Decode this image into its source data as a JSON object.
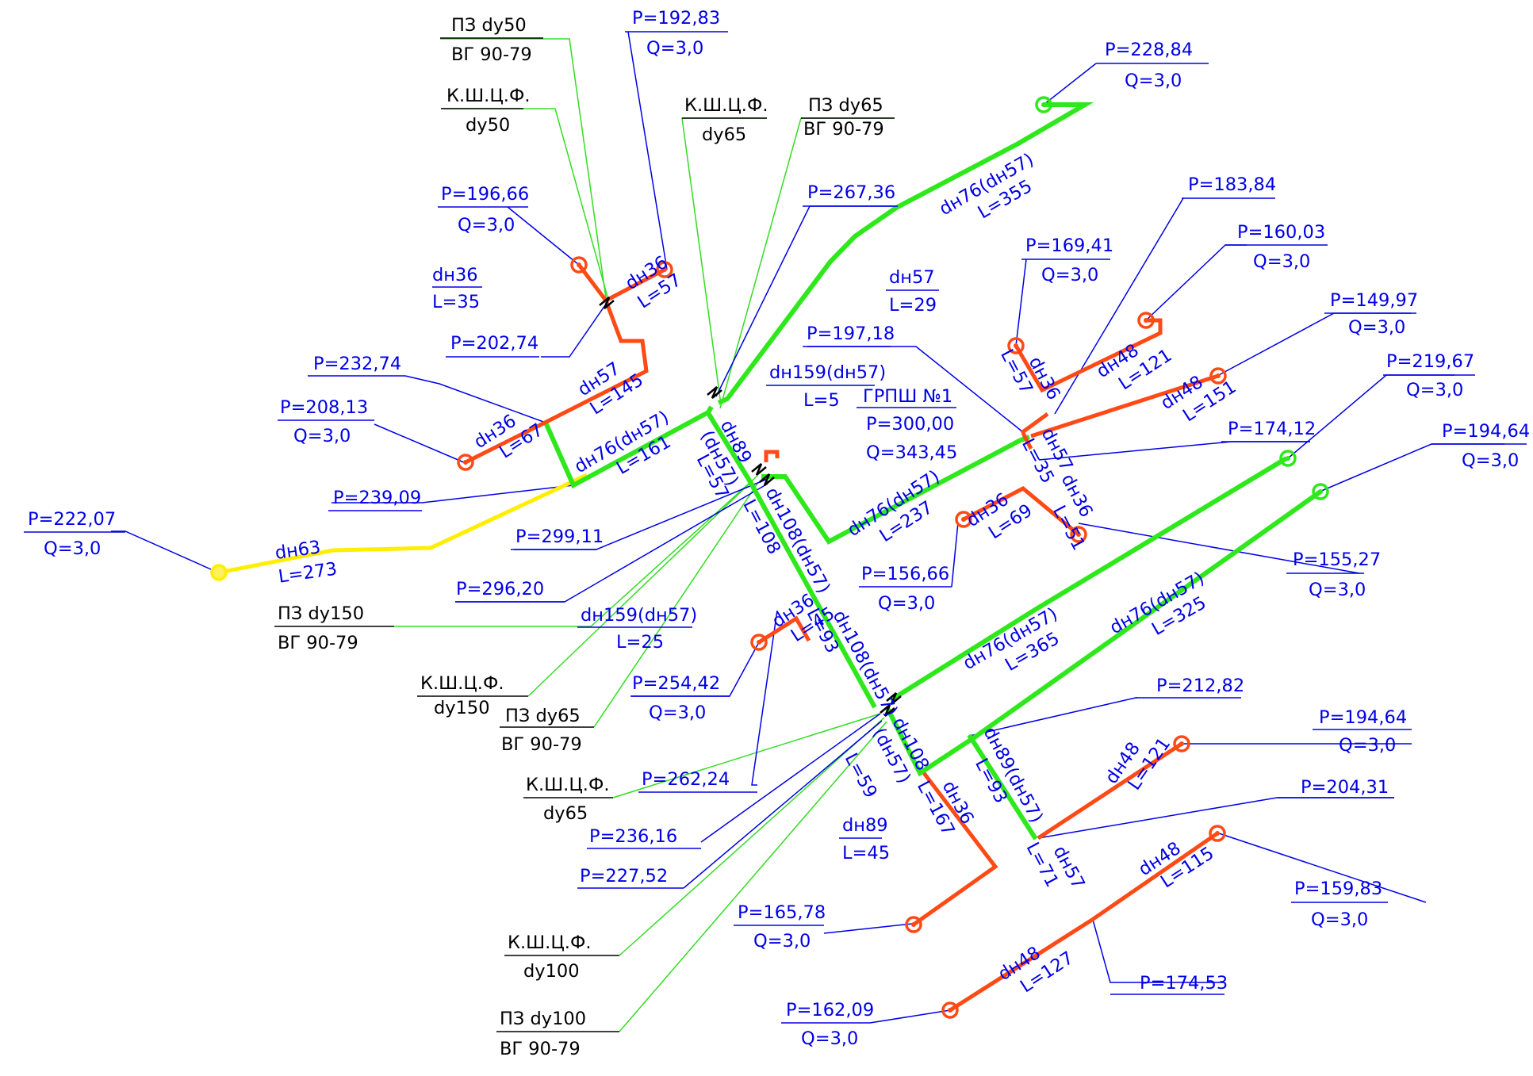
{
  "colors": {
    "pipe_main": "#2ee81c",
    "pipe_branch": "#ff4a16",
    "pipe_feed": "#ffee00",
    "text_data": "#0000e6",
    "text_equipment": "#000000"
  },
  "source": {
    "name": "ГРПШ №1",
    "p": "P=300,00",
    "q": "Q=343,45"
  },
  "pressure_labels": [
    {
      "id": "p1",
      "p": "P=192,83",
      "q": "Q=3,0"
    },
    {
      "id": "p2",
      "p": "P=228,84",
      "q": "Q=3,0"
    },
    {
      "id": "p3",
      "p": "P=196,66",
      "q": "Q=3,0"
    },
    {
      "id": "p4",
      "p": "P=267,36"
    },
    {
      "id": "p5",
      "p": "P=202,74"
    },
    {
      "id": "p6",
      "p": "P=183,84"
    },
    {
      "id": "p7",
      "p": "P=169,41",
      "q": "Q=3,0"
    },
    {
      "id": "p8",
      "p": "P=160,03",
      "q": "Q=3,0"
    },
    {
      "id": "p9",
      "p": "P=149,97",
      "q": "Q=3,0"
    },
    {
      "id": "p10",
      "p": "P=197,18"
    },
    {
      "id": "p11",
      "p": "P=232,74"
    },
    {
      "id": "p12",
      "p": "P=208,13",
      "q": "Q=3,0"
    },
    {
      "id": "p13",
      "p": "P=219,67",
      "q": "Q=3,0"
    },
    {
      "id": "p14",
      "p": "P=174,12"
    },
    {
      "id": "p15",
      "p": "P=194,64",
      "q": "Q=3,0"
    },
    {
      "id": "p16",
      "p": "P=239,09"
    },
    {
      "id": "p17",
      "p": "P=222,07",
      "q": "Q=3,0"
    },
    {
      "id": "p18",
      "p": "P=299,11"
    },
    {
      "id": "p19",
      "p": "P=156,66",
      "q": "Q=3,0"
    },
    {
      "id": "p20",
      "p": "P=155,27",
      "q": "Q=3,0"
    },
    {
      "id": "p21",
      "p": "P=296,20"
    },
    {
      "id": "p22",
      "p": "P=254,42",
      "q": "Q=3,0"
    },
    {
      "id": "p23",
      "p": "P=212,82"
    },
    {
      "id": "p24",
      "p": "P=194,64",
      "q": "Q=3,0"
    },
    {
      "id": "p25",
      "p": "P=262,24"
    },
    {
      "id": "p26",
      "p": "P=204,31"
    },
    {
      "id": "p27",
      "p": "P=236,16"
    },
    {
      "id": "p28",
      "p": "P=159,83",
      "q": "Q=3,0"
    },
    {
      "id": "p29",
      "p": "P=227,52"
    },
    {
      "id": "p30",
      "p": "P=165,78",
      "q": "Q=3,0"
    },
    {
      "id": "p31",
      "p": "P=174,53"
    },
    {
      "id": "p32",
      "p": "P=162,09",
      "q": "Q=3,0"
    }
  ],
  "segment_labels": [
    {
      "id": "s1",
      "d": "dн36",
      "l": "L=57"
    },
    {
      "id": "s2",
      "d": "dн36",
      "l": "L=35"
    },
    {
      "id": "s3",
      "d": "dн57",
      "l": "L=145"
    },
    {
      "id": "s4",
      "d": "dн36",
      "l": "L=67"
    },
    {
      "id": "s5",
      "d": "dн76(dн57)",
      "l": "L=161"
    },
    {
      "id": "s6",
      "d": "dн76(dн57)",
      "l": "L=355"
    },
    {
      "id": "s7",
      "d": "dн63",
      "l": "L=273"
    },
    {
      "id": "s8",
      "d": "dн89",
      "l": "(dн57)"
    },
    {
      "id": "s8b",
      "l": "L=57"
    },
    {
      "id": "s9",
      "d": "dн159(dн57)",
      "l": "L=5"
    },
    {
      "id": "s10",
      "d": "dн108(dн57)",
      "l": "L=108"
    },
    {
      "id": "s11",
      "d": "dн159(dн57)",
      "l": "L=25"
    },
    {
      "id": "s12",
      "d": "dн57",
      "l": "L=29"
    },
    {
      "id": "s13",
      "d": "dн36",
      "l": "L=57"
    },
    {
      "id": "s14",
      "d": "dн48",
      "l": "L=121"
    },
    {
      "id": "s15",
      "d": "dн48",
      "l": "L=151"
    },
    {
      "id": "s16",
      "d": "dн57",
      "l": "L=35"
    },
    {
      "id": "s17",
      "d": "dн36",
      "l": "L=51"
    },
    {
      "id": "s18",
      "d": "dн36",
      "l": "L=69"
    },
    {
      "id": "s19",
      "d": "dн76(dн57)",
      "l": "L=237"
    },
    {
      "id": "s20",
      "d": "dн76(dн57)",
      "l": "L=365"
    },
    {
      "id": "s21",
      "d": "dн76(dн57)",
      "l": "L=325"
    },
    {
      "id": "s22",
      "d": "dн36",
      "l": "L=45"
    },
    {
      "id": "s23",
      "d": "dн108(dн57)",
      "l": "L=93"
    },
    {
      "id": "s24",
      "d": "dн108",
      "l": "(dн57)"
    },
    {
      "id": "s24b",
      "l": "L=59"
    },
    {
      "id": "s25",
      "d": "dн36",
      "l": "L=167"
    },
    {
      "id": "s26",
      "d": "dн89(dн57)",
      "l": "L=93"
    },
    {
      "id": "s27",
      "d": "dн89",
      "l": "L=45"
    },
    {
      "id": "s28",
      "d": "dн48",
      "l": "L=121"
    },
    {
      "id": "s29",
      "d": "dн57",
      "l": "L=71"
    },
    {
      "id": "s30",
      "d": "dн48",
      "l": "L=115"
    },
    {
      "id": "s31",
      "d": "dн48",
      "l": "L=127"
    }
  ],
  "equipment_labels": [
    {
      "id": "e1",
      "a": "ПЗ dу50",
      "b": "ВГ 90-79"
    },
    {
      "id": "e2",
      "a": "К.Ш.Ц.Ф.",
      "b": "dу50"
    },
    {
      "id": "e3",
      "a": "К.Ш.Ц.Ф.",
      "b": "dу65"
    },
    {
      "id": "e4",
      "a": "ПЗ dу65",
      "b": "ВГ 90-79"
    },
    {
      "id": "e5",
      "a": "ПЗ dу150",
      "b": "ВГ 90-79"
    },
    {
      "id": "e6",
      "a": "К.Ш.Ц.Ф.",
      "b": "dу150"
    },
    {
      "id": "e7",
      "a": "ПЗ dу65",
      "b": "ВГ 90-79"
    },
    {
      "id": "e8",
      "a": "К.Ш.Ц.Ф.",
      "b": "dу65"
    },
    {
      "id": "e9",
      "a": "К.Ш.Ц.Ф.",
      "b": "dу100"
    },
    {
      "id": "e10",
      "a": "ПЗ dу100",
      "b": "ВГ 90-79"
    }
  ]
}
